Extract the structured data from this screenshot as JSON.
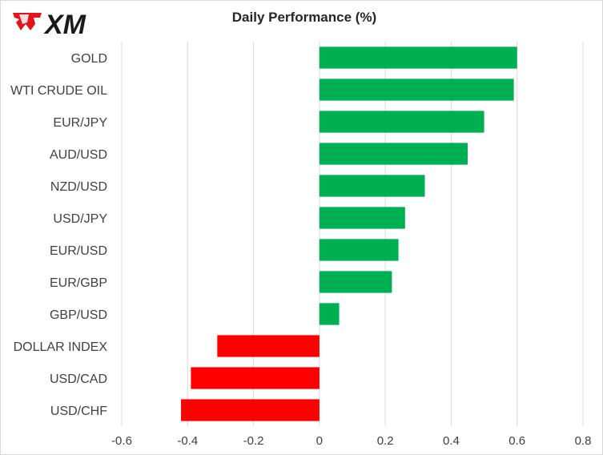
{
  "brand": {
    "logo_text": "XM"
  },
  "colors": {
    "positive": "#00b050",
    "negative": "#ff0000",
    "logo_red": "#e3151a"
  },
  "chart_data": {
    "type": "bar",
    "orientation": "horizontal",
    "title": "Daily Performance (%)",
    "xlabel": "",
    "ylabel": "",
    "categories": [
      "GOLD",
      "WTI CRUDE OIL",
      "EUR/JPY",
      "AUD/USD",
      "NZD/USD",
      "USD/JPY",
      "EUR/USD",
      "EUR/GBP",
      "GBP/USD",
      "DOLLAR INDEX",
      "USD/CAD",
      "USD/CHF"
    ],
    "values": [
      0.6,
      0.59,
      0.5,
      0.45,
      0.32,
      0.26,
      0.24,
      0.22,
      0.06,
      -0.31,
      -0.39,
      -0.42
    ],
    "xlim": [
      -0.6,
      0.8
    ],
    "xticks": [
      -0.6,
      -0.4,
      -0.2,
      0,
      0.2,
      0.4,
      0.6,
      0.8
    ],
    "xtick_labels": [
      "-0.6",
      "-0.4",
      "-0.2",
      "0",
      "0.2",
      "0.4",
      "0.6",
      "0.8"
    ],
    "grid": "vertical",
    "legend": "none"
  }
}
